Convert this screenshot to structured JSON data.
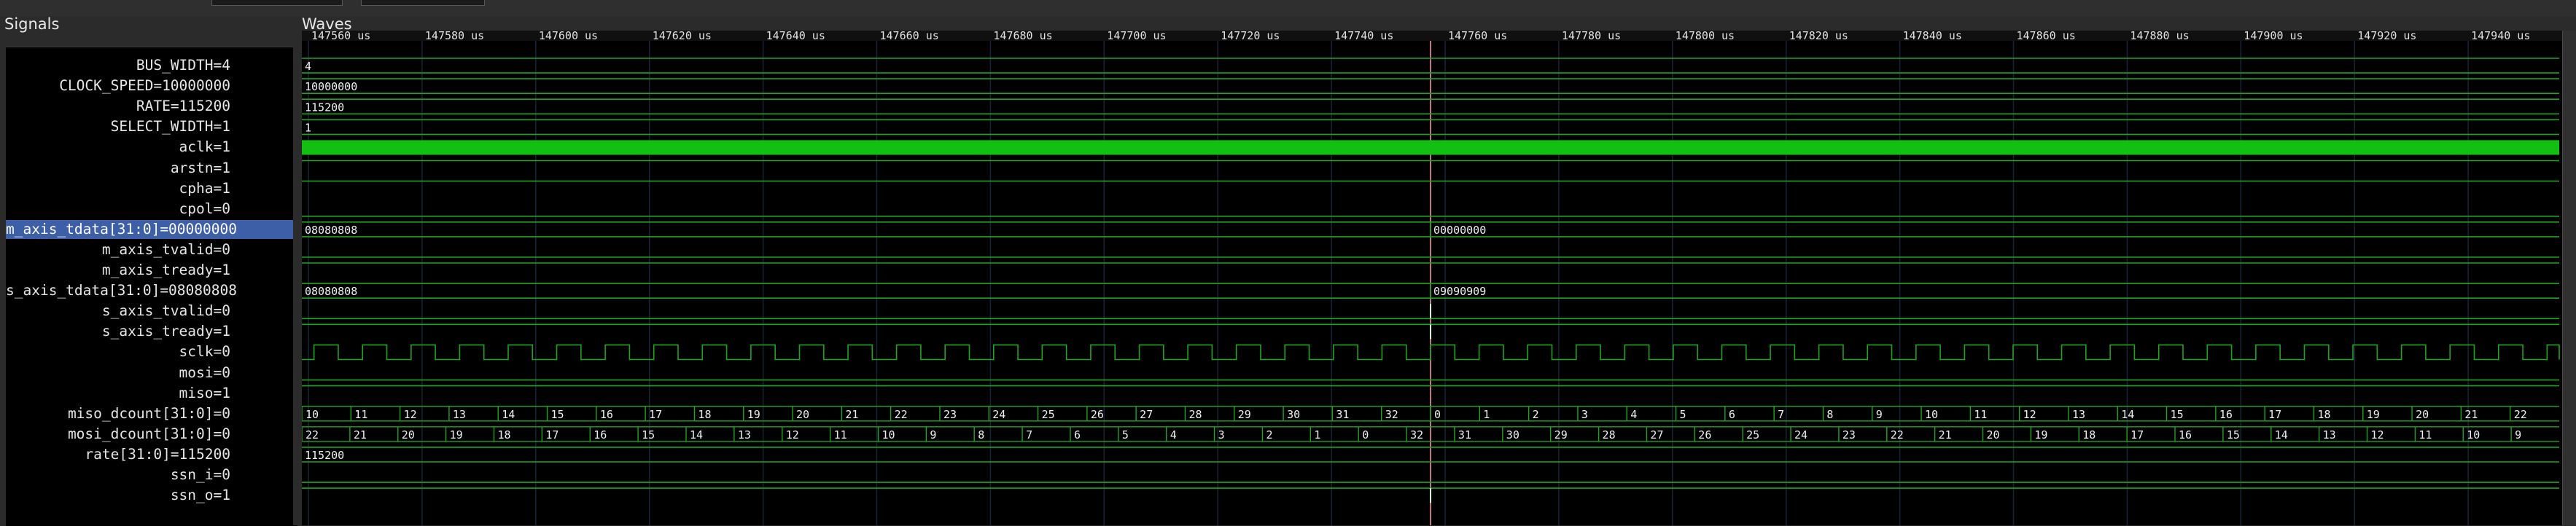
{
  "panels": {
    "signals_title": "Signals",
    "waves_title": "Waves"
  },
  "timeline": {
    "unit": "us",
    "ticks": [
      "147560 us",
      "147580 us",
      "147600 us",
      "147620 us",
      "147640 us",
      "147660 us",
      "147680 us",
      "147700 us",
      "147720 us",
      "147740 us",
      "147760 us",
      "147780 us",
      "147800 us",
      "147820 us",
      "147840 us",
      "147860 us",
      "147880 us",
      "147900 us",
      "147920 us",
      "147940 us"
    ]
  },
  "signals": [
    {
      "label": "BUS_WIDTH=4",
      "kind": "bus",
      "segments": [
        {
          "from": 0,
          "to": 1,
          "text": "4"
        }
      ]
    },
    {
      "label": "CLOCK_SPEED=10000000",
      "kind": "bus",
      "segments": [
        {
          "from": 0,
          "to": 1,
          "text": "10000000"
        }
      ]
    },
    {
      "label": "RATE=115200",
      "kind": "bus",
      "segments": [
        {
          "from": 0,
          "to": 1,
          "text": "115200"
        }
      ]
    },
    {
      "label": "SELECT_WIDTH=1",
      "kind": "bus",
      "segments": [
        {
          "from": 0,
          "to": 1,
          "text": "1"
        }
      ]
    },
    {
      "label": "aclk=1",
      "kind": "fastclock"
    },
    {
      "label": "arstn=1",
      "kind": "bit",
      "level": 1
    },
    {
      "label": "cpha=1",
      "kind": "bit",
      "level": 1
    },
    {
      "label": "cpol=0",
      "kind": "bit",
      "level": 0
    },
    {
      "label": "m_axis_tdata[31:0]=00000000",
      "kind": "bus",
      "selected": true,
      "segments": [
        {
          "from": 0,
          "to": 0.5,
          "text": "08080808"
        },
        {
          "from": 0.5,
          "to": 1,
          "text": "00000000"
        }
      ]
    },
    {
      "label": "m_axis_tvalid=0",
      "kind": "bit",
      "level": 0
    },
    {
      "label": "m_axis_tready=1",
      "kind": "bit",
      "level": 1
    },
    {
      "label": "s_axis_tdata[31:0]=08080808",
      "kind": "bus",
      "segments": [
        {
          "from": 0,
          "to": 0.5,
          "text": "08080808"
        },
        {
          "from": 0.5,
          "to": 1,
          "text": "09090909"
        }
      ]
    },
    {
      "label": "s_axis_tvalid=0",
      "kind": "bit",
      "level": 0
    },
    {
      "label": "s_axis_tready=1",
      "kind": "bit",
      "level": 1
    },
    {
      "label": "sclk=0",
      "kind": "sclk"
    },
    {
      "label": "mosi=0",
      "kind": "bit",
      "level": 0
    },
    {
      "label": "miso=1",
      "kind": "bit",
      "level": 1
    },
    {
      "label": "miso_dcount[31:0]=0",
      "kind": "counter",
      "labels": [
        "10",
        "11",
        "12",
        "13",
        "14",
        "15",
        "16",
        "17",
        "18",
        "19",
        "20",
        "21",
        "22",
        "23",
        "24",
        "25",
        "26",
        "27",
        "28",
        "29",
        "30",
        "31",
        "32",
        "0",
        "1",
        "2",
        "3",
        "4",
        "5",
        "6",
        "7",
        "8",
        "9",
        "10",
        "11",
        "12",
        "13",
        "14",
        "15",
        "16",
        "17",
        "18",
        "19",
        "20",
        "21",
        "22"
      ]
    },
    {
      "label": "mosi_dcount[31:0]=0",
      "kind": "counter",
      "labels": [
        "22",
        "21",
        "20",
        "19",
        "18",
        "17",
        "16",
        "15",
        "14",
        "13",
        "12",
        "11",
        "10",
        "9",
        "8",
        "7",
        "6",
        "5",
        "4",
        "3",
        "2",
        "1",
        "0",
        "32",
        "31",
        "30",
        "29",
        "28",
        "27",
        "26",
        "25",
        "24",
        "23",
        "22",
        "21",
        "20",
        "19",
        "18",
        "17",
        "16",
        "15",
        "14",
        "13",
        "12",
        "11",
        "10",
        "9"
      ]
    },
    {
      "label": "rate[31:0]=115200",
      "kind": "bus",
      "segments": [
        {
          "from": 0,
          "to": 1,
          "text": "115200"
        }
      ]
    },
    {
      "label": "ssn_i=0",
      "kind": "bit",
      "level": 0
    },
    {
      "label": "ssn_o=1",
      "kind": "bit",
      "level": 1
    }
  ],
  "colors": {
    "waveform": "#1fa51f",
    "aclk_fill": "#12c012",
    "cursor": "#ff9aa8",
    "grid": "#1a2438",
    "selection": "#3d5fa8"
  }
}
